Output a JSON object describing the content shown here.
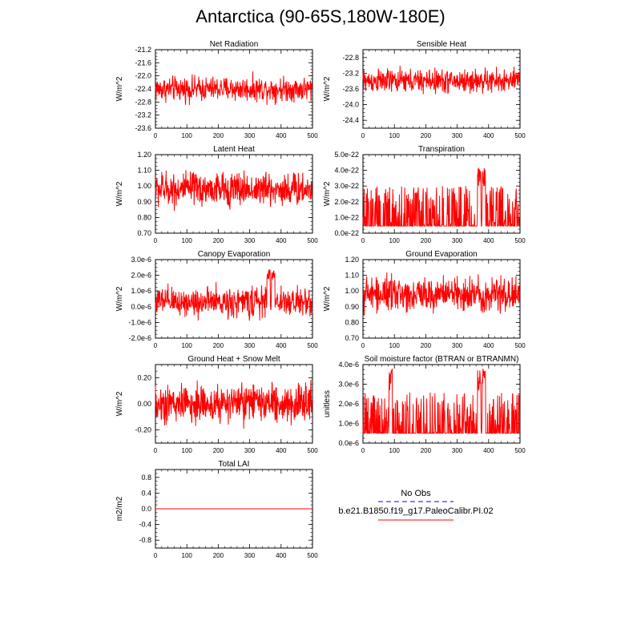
{
  "page": {
    "title": "Antarctica (90-65S,180W-180E)"
  },
  "legend": {
    "entries": [
      {
        "label": "No Obs",
        "color": "#0000ff",
        "style": "dashed"
      },
      {
        "label": "b.e21.B1850.f19_g17.PaleoCalibr.PI.02",
        "color": "#ff0000",
        "style": "solid"
      }
    ]
  },
  "colors": {
    "series": "#ff0000",
    "obs": "#0000ff"
  },
  "chart_data": [
    {
      "type": "line",
      "title": "Net Radiation",
      "xlabel": "",
      "ylabel": "W/m^2",
      "xlim": [
        0,
        500
      ],
      "ylim": [
        -23.6,
        -21.2
      ],
      "xticks": [
        0,
        100,
        200,
        300,
        400,
        500
      ],
      "yticks": [
        -21.2,
        -21.6,
        -22.0,
        -22.4,
        -22.8,
        -23.2,
        -23.6
      ],
      "ytick_labels": [
        "-21.2",
        "-21.6",
        "-22.0",
        "-22.4",
        "-22.8",
        "-23.2",
        "-23.6"
      ],
      "series": [
        {
          "values_summary": {
            "n": 500,
            "mean": -22.4,
            "spread": 0.55,
            "spike_at": []
          }
        }
      ]
    },
    {
      "type": "line",
      "title": "Sensible Heat",
      "xlabel": "",
      "ylabel": "W/m^2",
      "xlim": [
        0,
        500
      ],
      "ylim": [
        -24.6,
        -22.6
      ],
      "xticks": [
        0,
        100,
        200,
        300,
        400,
        500
      ],
      "yticks": [
        -22.8,
        -23.2,
        -23.6,
        -24.0,
        -24.4
      ],
      "ytick_labels": [
        "-22.8",
        "-23.2",
        "-23.6",
        "-24.0",
        "-24.4"
      ],
      "series": [
        {
          "values_summary": {
            "n": 500,
            "mean": -23.4,
            "spread": 0.45,
            "spike_at": []
          }
        }
      ]
    },
    {
      "type": "line",
      "title": "Latent Heat",
      "xlabel": "",
      "ylabel": "W/m^2",
      "xlim": [
        0,
        500
      ],
      "ylim": [
        0.7,
        1.2
      ],
      "xticks": [
        0,
        100,
        200,
        300,
        400,
        500
      ],
      "yticks": [
        0.7,
        0.8,
        0.9,
        1.0,
        1.1,
        1.2
      ],
      "ytick_labels": [
        "0.70",
        "0.80",
        "0.90",
        "1.00",
        "1.10",
        "1.20"
      ],
      "series": [
        {
          "values_summary": {
            "n": 500,
            "mean": 0.98,
            "spread": 0.16,
            "spike_at": []
          }
        }
      ]
    },
    {
      "type": "line",
      "title": "Transpiration",
      "xlabel": "",
      "ylabel": "W/m^2",
      "xlim": [
        0,
        500
      ],
      "ylim": [
        0,
        5e-22
      ],
      "xticks": [
        0,
        100,
        200,
        300,
        400,
        500
      ],
      "yticks": [
        0,
        1e-22,
        2e-22,
        3e-22,
        4e-22,
        5e-22
      ],
      "ytick_labels": [
        "0.0e-22",
        "1.0e-22",
        "2.0e-22",
        "3.0e-22",
        "4.0e-22",
        "5.0e-22"
      ],
      "series": [
        {
          "values_summary": {
            "n": 500,
            "mean": 9e-23,
            "spread": 1.6e-22,
            "spike_at": [
              370,
              385
            ],
            "spike_value": 4.2e-22
          }
        }
      ]
    },
    {
      "type": "line",
      "title": "Canopy Evaporation",
      "xlabel": "",
      "ylabel": "W/m^2",
      "xlim": [
        0,
        500
      ],
      "ylim": [
        -2e-06,
        3e-06
      ],
      "xticks": [
        0,
        100,
        200,
        300,
        400,
        500
      ],
      "yticks": [
        -2e-06,
        -1e-06,
        0,
        1e-06,
        2e-06,
        3e-06
      ],
      "ytick_labels": [
        "-2.0e-6",
        "-1.0e-6",
        "0.0e-6",
        "1.0e-6",
        "2.0e-6",
        "3.0e-6"
      ],
      "series": [
        {
          "values_summary": {
            "n": 500,
            "mean": 3e-07,
            "spread": 1.4e-06,
            "spike_at": [
              360,
              375
            ],
            "spike_value": 2.4e-06
          }
        }
      ]
    },
    {
      "type": "line",
      "title": "Ground Evaporation",
      "xlabel": "",
      "ylabel": "W/m^2",
      "xlim": [
        0,
        500
      ],
      "ylim": [
        0.7,
        1.2
      ],
      "xticks": [
        0,
        100,
        200,
        300,
        400,
        500
      ],
      "yticks": [
        0.7,
        0.8,
        0.9,
        1.0,
        1.1,
        1.2
      ],
      "ytick_labels": [
        "0.70",
        "0.80",
        "0.90",
        "1.00",
        "1.10",
        "1.20"
      ],
      "series": [
        {
          "values_summary": {
            "n": 500,
            "mean": 0.98,
            "spread": 0.16,
            "spike_at": []
          }
        }
      ]
    },
    {
      "type": "line",
      "title": "Ground Heat + Snow Melt",
      "xlabel": "",
      "ylabel": "W/m^2",
      "xlim": [
        0,
        500
      ],
      "ylim": [
        -0.3,
        0.3
      ],
      "xticks": [
        0,
        100,
        200,
        300,
        400,
        500
      ],
      "yticks": [
        -0.2,
        0.0,
        0.2
      ],
      "ytick_labels": [
        "-0.20",
        "0.00",
        "0.20"
      ],
      "series": [
        {
          "values_summary": {
            "n": 500,
            "mean": 0.0,
            "spread": 0.22,
            "spike_at": []
          }
        }
      ]
    },
    {
      "type": "line",
      "title": "Soil moisture factor (BTRAN or BTRANMN)",
      "xlabel": "",
      "ylabel": "unitless",
      "xlim": [
        0,
        500
      ],
      "ylim": [
        0,
        4e-06
      ],
      "xticks": [
        0,
        100,
        200,
        300,
        400,
        500
      ],
      "yticks": [
        0,
        1e-06,
        2e-06,
        3e-06,
        4e-06
      ],
      "ytick_labels": [
        "0.0e-6",
        "1.0e-6",
        "2.0e-6",
        "3.0e-6",
        "4.0e-6"
      ],
      "series": [
        {
          "values_summary": {
            "n": 500,
            "mean": 1e-06,
            "spread": 1.3e-06,
            "spike_at": [
              88,
              370,
              385
            ],
            "spike_value": 3.8e-06
          }
        }
      ]
    },
    {
      "type": "line",
      "title": "Total LAI",
      "xlabel": "",
      "ylabel": "m2/m2",
      "xlim": [
        0,
        500
      ],
      "ylim": [
        -1.0,
        1.0
      ],
      "xticks": [
        0,
        100,
        200,
        300,
        400,
        500
      ],
      "yticks": [
        -0.8,
        -0.4,
        0.0,
        0.4,
        0.8
      ],
      "ytick_labels": [
        "-0.8",
        "-0.4",
        "0.0",
        "0.4",
        "0.8"
      ],
      "series": [
        {
          "values_summary": {
            "n": 500,
            "mean": 0.0,
            "spread": 0.0,
            "spike_at": []
          }
        }
      ]
    }
  ]
}
